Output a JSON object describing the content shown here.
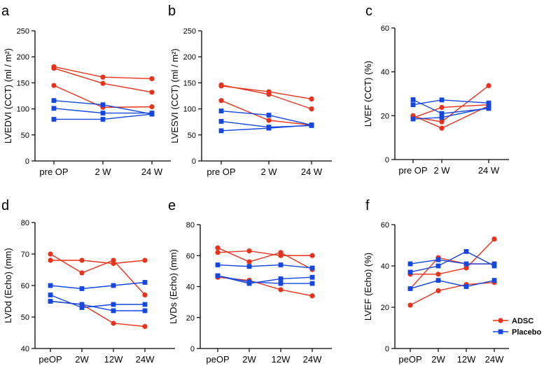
{
  "colors": {
    "adsc": "#e8321c",
    "placebo": "#1446e0",
    "axis": "#000000"
  },
  "legend": {
    "placement": "right, beside panel f",
    "items": [
      {
        "label": "ADSC",
        "color": "#e8321c",
        "marker": "circle"
      },
      {
        "label": "Placebo",
        "color": "#1446e0",
        "marker": "square"
      }
    ]
  },
  "chart_data": [
    {
      "panel": "a",
      "type": "line",
      "ylabel": "LVEDVI (CCT) (ml / m²)",
      "categories": [
        "pre OP",
        "2 W",
        "24 W"
      ],
      "ylim": [
        0,
        250
      ],
      "yticks": [
        0,
        50,
        100,
        150,
        200,
        250
      ],
      "series": [
        {
          "group": "ADSC",
          "values": [
            181,
            161,
            158
          ]
        },
        {
          "group": "ADSC",
          "values": [
            178,
            149,
            132
          ]
        },
        {
          "group": "ADSC",
          "values": [
            145,
            103,
            104
          ]
        },
        {
          "group": "Placebo",
          "values": [
            116,
            108,
            90
          ]
        },
        {
          "group": "Placebo",
          "values": [
            101,
            92,
            92
          ]
        },
        {
          "group": "Placebo",
          "values": [
            80,
            80,
            90
          ]
        }
      ]
    },
    {
      "panel": "b",
      "type": "line",
      "ylabel": "LVESVI (CCT) (ml / m²)",
      "categories": [
        "pre OP",
        "2 W",
        "24 W"
      ],
      "ylim": [
        0,
        250
      ],
      "yticks": [
        0,
        50,
        100,
        150,
        200,
        250
      ],
      "series": [
        {
          "group": "ADSC",
          "values": [
            146,
            128,
            100
          ]
        },
        {
          "group": "ADSC",
          "values": [
            144,
            133,
            119
          ]
        },
        {
          "group": "ADSC",
          "values": [
            116,
            78,
            69
          ]
        },
        {
          "group": "Placebo",
          "values": [
            96,
            88,
            69
          ]
        },
        {
          "group": "Placebo",
          "values": [
            76,
            65,
            68
          ]
        },
        {
          "group": "Placebo",
          "values": [
            58,
            63,
            69
          ]
        }
      ]
    },
    {
      "panel": "c",
      "type": "line",
      "ylabel": "LVEF (CCT) (%)",
      "categories": [
        "pre OP",
        "2 W",
        "24 W"
      ],
      "ylim": [
        0,
        60
      ],
      "yticks": [
        0,
        20,
        40,
        60
      ],
      "series": [
        {
          "group": "ADSC",
          "values": [
            20,
            14.3,
            24.5
          ]
        },
        {
          "group": "ADSC",
          "values": [
            19.5,
            17.2,
            33.7
          ]
        },
        {
          "group": "ADSC",
          "values": [
            19,
            23.8,
            25
          ]
        },
        {
          "group": "Placebo",
          "values": [
            27.3,
            21,
            23.3
          ]
        },
        {
          "group": "Placebo",
          "values": [
            25,
            27.2,
            25.8
          ]
        },
        {
          "group": "Placebo",
          "values": [
            18.5,
            19.2,
            23.7
          ]
        }
      ]
    },
    {
      "panel": "d",
      "type": "line",
      "ylabel": "LVDd (Echo) (mm)",
      "categories": [
        "peOP",
        "2W",
        "12W",
        "24W"
      ],
      "ylim": [
        40,
        80
      ],
      "yticks": [
        40,
        50,
        60,
        70,
        80
      ],
      "series": [
        {
          "group": "ADSC",
          "values": [
            70,
            64,
            68,
            57
          ]
        },
        {
          "group": "ADSC",
          "values": [
            68,
            68,
            67,
            68
          ]
        },
        {
          "group": "ADSC",
          "values": [
            55,
            54,
            48,
            47
          ]
        },
        {
          "group": "Placebo",
          "values": [
            60,
            59,
            60,
            61
          ]
        },
        {
          "group": "Placebo",
          "values": [
            57,
            53,
            54,
            54
          ]
        },
        {
          "group": "Placebo",
          "values": [
            55,
            54,
            52,
            52
          ]
        }
      ]
    },
    {
      "panel": "e",
      "type": "line",
      "ylabel": "LVDs (Echo) (mm)",
      "categories": [
        "peOP",
        "2W",
        "12W",
        "24W"
      ],
      "ylim": [
        0,
        80
      ],
      "yticks": [
        0,
        20,
        40,
        60,
        80
      ],
      "series": [
        {
          "group": "ADSC",
          "values": [
            65,
            56,
            62,
            51
          ]
        },
        {
          "group": "ADSC",
          "values": [
            62,
            63,
            60,
            60
          ]
        },
        {
          "group": "ADSC",
          "values": [
            46,
            44,
            38,
            34
          ]
        },
        {
          "group": "Placebo",
          "values": [
            54,
            53,
            54,
            52
          ]
        },
        {
          "group": "Placebo",
          "values": [
            47,
            42,
            45,
            46
          ]
        },
        {
          "group": "Placebo",
          "values": [
            47,
            43,
            42,
            42
          ]
        }
      ]
    },
    {
      "panel": "f",
      "type": "line",
      "ylabel": "LVEF (Echo) (%)",
      "categories": [
        "peOP",
        "2W",
        "12W",
        "24W"
      ],
      "ylim": [
        0,
        60
      ],
      "yticks": [
        0,
        20,
        40,
        60
      ],
      "series": [
        {
          "group": "ADSC",
          "values": [
            21,
            28,
            31,
            32
          ]
        },
        {
          "group": "ADSC",
          "values": [
            36,
            36,
            39,
            53
          ]
        },
        {
          "group": "ADSC",
          "values": [
            29,
            44,
            41,
            41
          ]
        },
        {
          "group": "Placebo",
          "values": [
            41,
            43,
            41,
            41
          ]
        },
        {
          "group": "Placebo",
          "values": [
            37,
            40,
            47,
            40
          ]
        },
        {
          "group": "Placebo",
          "values": [
            29,
            33,
            30,
            33
          ]
        }
      ]
    }
  ]
}
